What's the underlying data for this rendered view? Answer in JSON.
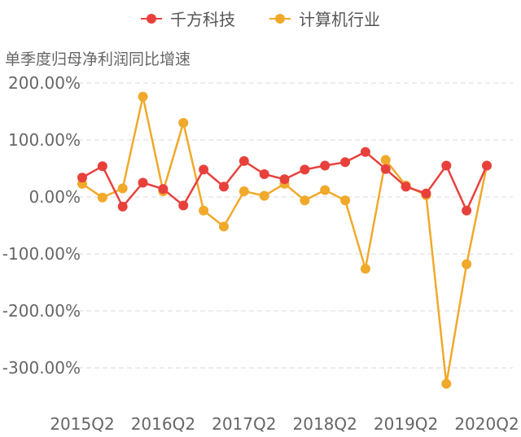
{
  "chart_data": {
    "type": "line",
    "ylabel": "单季度归母净利润同比增速",
    "ylim": [
      -370,
      220
    ],
    "yticks": [
      200,
      100,
      0,
      -100,
      -200,
      -300
    ],
    "ytick_labels": [
      "200.00%",
      "100.00%",
      "0.00%",
      "-100.00%",
      "-200.00%",
      "-300.00%"
    ],
    "categories": [
      "2015Q2",
      "2015Q3",
      "2015Q4",
      "2016Q1",
      "2016Q2",
      "2016Q3",
      "2016Q4",
      "2017Q1",
      "2017Q2",
      "2017Q3",
      "2017Q4",
      "2018Q1",
      "2018Q2",
      "2018Q3",
      "2018Q4",
      "2019Q1",
      "2019Q2",
      "2019Q3",
      "2019Q4",
      "2020Q1",
      "2020Q2"
    ],
    "xtick_labels": [
      "2015Q2",
      "2016Q2",
      "2017Q2",
      "2018Q2",
      "2019Q2",
      "2020Q2"
    ],
    "xtick_indices": [
      0,
      4,
      8,
      12,
      16,
      20
    ],
    "series": [
      {
        "name": "千方科技",
        "color": "#e8413c",
        "values": [
          34,
          54,
          -17,
          25,
          14,
          -15,
          48,
          18,
          63,
          40,
          31,
          48,
          55,
          61,
          79,
          49,
          18,
          6,
          55,
          -24,
          55
        ]
      },
      {
        "name": "计算机行业",
        "color": "#f0a92a",
        "values": [
          23,
          -1,
          15,
          176,
          10,
          130,
          -24,
          -52,
          10,
          2,
          23,
          -6,
          12,
          -6,
          -126,
          65,
          20,
          3,
          -328,
          -118,
          55
        ]
      }
    ],
    "grid": true,
    "legend": "top-center"
  }
}
